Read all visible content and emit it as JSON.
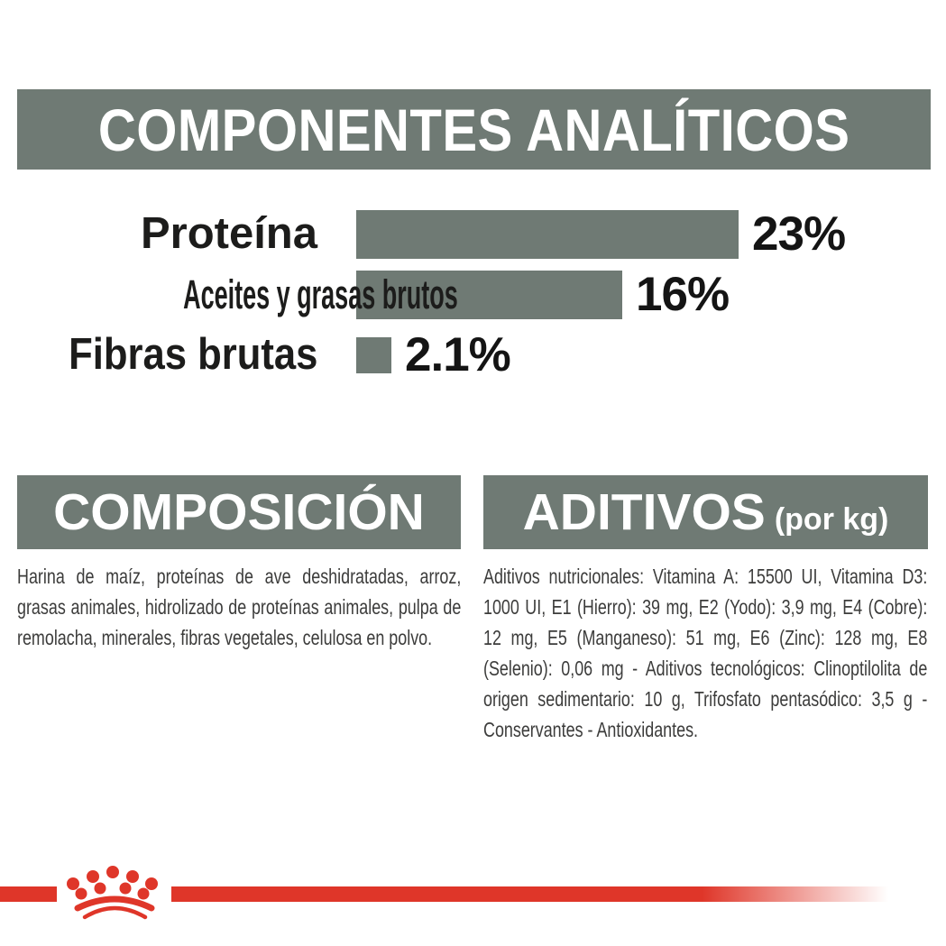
{
  "analytical": {
    "title": "COMPONENTES ANALÍTICOS"
  },
  "chart_data": {
    "type": "bar",
    "orientation": "horizontal",
    "title": "COMPONENTES ANALÍTICOS",
    "categories": [
      "Proteína",
      "Aceites y grasas brutos",
      "Fibras brutas"
    ],
    "values": [
      23,
      16,
      2.1
    ],
    "value_labels": [
      "23%",
      "16%",
      "2.1%"
    ],
    "xlim": [
      0,
      23
    ],
    "bar_color": "#6F7A74",
    "grid": false,
    "legend": "none",
    "value_label_position": "right-of-bar"
  },
  "composition": {
    "header": "COMPOSICIÓN",
    "body": "Harina de maíz, proteínas de ave deshidratadas, arroz, grasas animales, hidrolizado de proteínas animales, pulpa de remolacha, minerales, fibras vegetales, celulosa en polvo."
  },
  "additives": {
    "header": "ADITIVOS",
    "unit_note": "(por kg)",
    "body": "Aditivos nutricionales: Vitamina A: 15500 UI, Vitamina D3: 1000 UI, E1 (Hierro): 39 mg, E2 (Yodo): 3,9 mg, E4 (Cobre): 12 mg, E5 (Manganeso): 51 mg, E6 (Zinc): 128 mg, E8 (Selenio): 0,06 mg - Aditivos tecnológicos: Clinoptilolita de origen sedimentario: 10 g, Trifosfato pentasódico: 3,5 g - Conservantes - Antioxidantes."
  },
  "footer": {
    "logo": "royal-canin-crown"
  },
  "colors": {
    "section_gray": "#6F7A74",
    "header_text": "#FFFFFF",
    "label_black": "#1C1C1B",
    "body_text": "#3C3C3B",
    "accent_red": "#DF3629"
  }
}
